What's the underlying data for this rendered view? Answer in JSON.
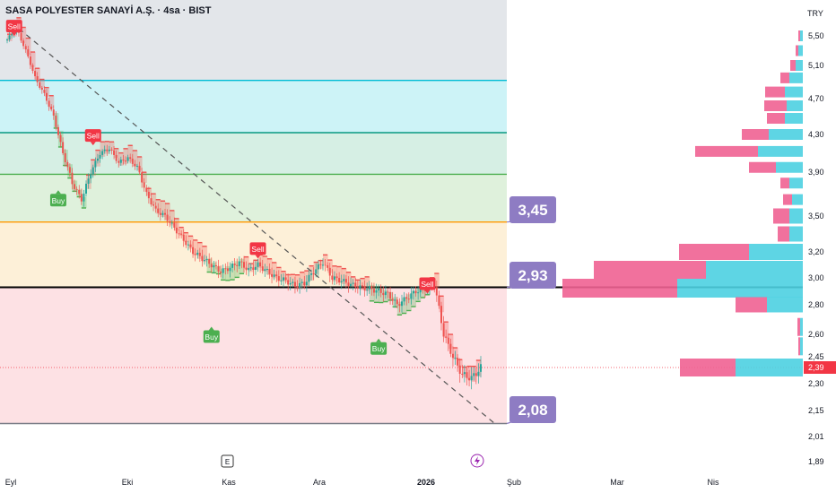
{
  "header": {
    "title": "SASA POLYESTER SANAYİ A.Ş. · 4sa · BIST"
  },
  "colors": {
    "up": "#26a69a",
    "down": "#ef5350",
    "sell_label": "#f23645",
    "buy_label": "#4caf50",
    "callout_bg": "#8e7cc3",
    "price_tag": "#f23645",
    "vp_pink": "#f06292",
    "vp_cyan": "#4dd0e1"
  },
  "chart_data": {
    "type": "candlestick",
    "currency": "TRY",
    "current_price": "2,39",
    "y_ticks": [
      "5,50",
      "5,10",
      "4,70",
      "4,30",
      "3,90",
      "3,50",
      "3,20",
      "3,00",
      "2,80",
      "2,60",
      "2,45",
      "2,30",
      "2,15",
      "2,01",
      "1,89"
    ],
    "x_ticks": [
      "Eyl",
      "Eki",
      "Kas",
      "Ara",
      "2026",
      "Şub",
      "Mar",
      "Nis"
    ],
    "price_path": [
      [
        0,
        5.45
      ],
      [
        4,
        5.6
      ],
      [
        8,
        5.3
      ],
      [
        12,
        4.95
      ],
      [
        16,
        4.75
      ],
      [
        20,
        4.5
      ],
      [
        24,
        4.1
      ],
      [
        28,
        3.8
      ],
      [
        32,
        3.65
      ],
      [
        36,
        3.9
      ],
      [
        40,
        4.1
      ],
      [
        44,
        4.15
      ],
      [
        48,
        4.0
      ],
      [
        52,
        4.05
      ],
      [
        56,
        3.95
      ],
      [
        60,
        3.7
      ],
      [
        64,
        3.55
      ],
      [
        68,
        3.5
      ],
      [
        72,
        3.4
      ],
      [
        76,
        3.3
      ],
      [
        80,
        3.2
      ],
      [
        84,
        3.15
      ],
      [
        88,
        3.1
      ],
      [
        92,
        3.05
      ],
      [
        96,
        3.08
      ],
      [
        100,
        3.12
      ],
      [
        104,
        3.06
      ],
      [
        108,
        3.1
      ],
      [
        112,
        3.05
      ],
      [
        116,
        3.0
      ],
      [
        120,
        2.98
      ],
      [
        124,
        2.94
      ],
      [
        128,
        2.96
      ],
      [
        132,
        3.05
      ],
      [
        136,
        3.12
      ],
      [
        140,
        3.0
      ],
      [
        144,
        2.98
      ],
      [
        148,
        2.95
      ],
      [
        152,
        2.93
      ],
      [
        156,
        2.92
      ],
      [
        160,
        2.9
      ],
      [
        164,
        2.88
      ],
      [
        168,
        2.8
      ],
      [
        172,
        2.85
      ],
      [
        176,
        2.9
      ],
      [
        180,
        2.92
      ],
      [
        184,
        2.95
      ],
      [
        188,
        2.6
      ],
      [
        192,
        2.45
      ],
      [
        196,
        2.35
      ],
      [
        200,
        2.33
      ],
      [
        204,
        2.39
      ]
    ],
    "sell_signals": [
      [
        3,
        5.62
      ],
      [
        37,
        4.28
      ],
      [
        108,
        3.22
      ],
      [
        181,
        2.95
      ]
    ],
    "buy_signals": [
      [
        22,
        3.8
      ],
      [
        88,
        2.7
      ],
      [
        160,
        2.62
      ]
    ],
    "signal_labels": {
      "sell": "Sell",
      "buy": "Buy"
    },
    "fib_levels": [
      {
        "price": 4.92,
        "color": "#00bcd4"
      },
      {
        "price": 4.32,
        "color": "#089981"
      },
      {
        "price": 3.88,
        "color": "#4caf50"
      },
      {
        "price": 3.45,
        "color": "#ff9800"
      },
      {
        "price": 2.93,
        "color": "#000000"
      },
      {
        "price": 2.08,
        "color": "#787b86"
      }
    ],
    "callouts": [
      "3,45",
      "2,93",
      "2,08"
    ],
    "trendline": {
      "from": [
        5,
        5.6
      ],
      "to": [
        210,
        2.08
      ]
    },
    "volume_profile": [
      {
        "price": 5.5,
        "cyan": 3,
        "pink": 2
      },
      {
        "price": 5.3,
        "cyan": 5,
        "pink": 3
      },
      {
        "price": 5.1,
        "cyan": 8,
        "pink": 6
      },
      {
        "price": 4.95,
        "cyan": 15,
        "pink": 10
      },
      {
        "price": 4.78,
        "cyan": 20,
        "pink": 22
      },
      {
        "price": 4.62,
        "cyan": 18,
        "pink": 25
      },
      {
        "price": 4.48,
        "cyan": 20,
        "pink": 20
      },
      {
        "price": 4.3,
        "cyan": 38,
        "pink": 30
      },
      {
        "price": 4.12,
        "cyan": 50,
        "pink": 70
      },
      {
        "price": 3.95,
        "cyan": 30,
        "pink": 30
      },
      {
        "price": 3.8,
        "cyan": 15,
        "pink": 10
      },
      {
        "price": 3.65,
        "cyan": 12,
        "pink": 10
      },
      {
        "price": 3.5,
        "cyan": 15,
        "pink": 18
      },
      {
        "price": 3.35,
        "cyan": 15,
        "pink": 13
      },
      {
        "price": 3.2,
        "cyan": 60,
        "pink": 78
      },
      {
        "price": 3.05,
        "cyan": 108,
        "pink": 125
      },
      {
        "price": 2.93,
        "cyan": 140,
        "pink": 128
      },
      {
        "price": 2.8,
        "cyan": 40,
        "pink": 35
      },
      {
        "price": 2.65,
        "cyan": 3,
        "pink": 3
      },
      {
        "price": 2.52,
        "cyan": 3,
        "pink": 2
      },
      {
        "price": 2.39,
        "cyan": 75,
        "pink": 62
      }
    ],
    "markers": {
      "earnings": "E"
    }
  }
}
